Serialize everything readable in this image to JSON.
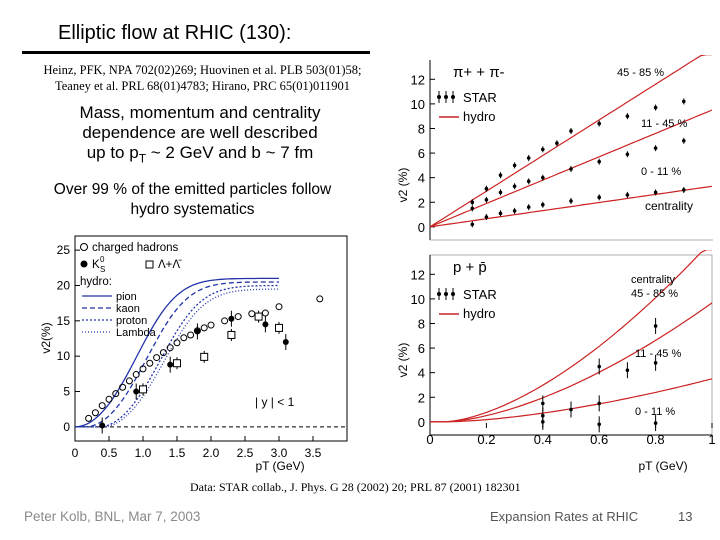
{
  "slide": {
    "title": "Elliptic flow at RHIC (130):",
    "references_line1": "Heinz, PFK, NPA 702(02)269; Huovinen et al. PLB 503(01)58;",
    "references_line2": "Teaney et al. PRL 68(01)4783; Hirano, PRC 65(01)011901",
    "description_line1": "Mass, momentum and centrality",
    "description_line2": "dependence are well described",
    "description_line3_prefix": "up to p",
    "description_line3_sub": "T",
    "description_line3_suffix": " ~ 2 GeV and b ~ 7 fm",
    "over_line1": "Over 99 % of the emitted particles follow",
    "over_line2": "hydro systematics",
    "data_source": "Data: STAR collab.,  J. Phys. G 28 (2002) 20; PRL 87 (2001) 182301",
    "footer_left": "Peter Kolb, BNL, Mar 7, 2003",
    "footer_center": "Expansion Rates at RHIC",
    "page_number": "13"
  },
  "colors": {
    "hydro_red": "#cc2222",
    "dashed_blue": "#2233aa",
    "grid_gray": "#999999"
  },
  "chart_data": [
    {
      "type": "scatter",
      "title": "",
      "xlabel": "pT (GeV)",
      "ylabel": "v2(%)",
      "xlim": [
        0,
        4
      ],
      "ylim": [
        -2,
        27
      ],
      "xticks": [
        "0",
        "0.5",
        "1.0",
        "1.5",
        "2.0",
        "2.5",
        "3.0",
        "3.5"
      ],
      "yticks": [
        "0",
        "5",
        "10",
        "15",
        "20",
        "25"
      ],
      "legend": [
        "charged hadrons",
        "K",
        "S",
        "0",
        "Λ+Λ̄",
        "hydro:",
        "pion",
        "kaon",
        "proton",
        "Lambda"
      ],
      "annotation": "| y | < 1",
      "series": [
        {
          "name": "charged hadrons",
          "points": [
            [
              0.2,
              1.2
            ],
            [
              0.3,
              2.0
            ],
            [
              0.4,
              3.0
            ],
            [
              0.5,
              3.9
            ],
            [
              0.6,
              4.7
            ],
            [
              0.7,
              5.6
            ],
            [
              0.8,
              6.5
            ],
            [
              0.9,
              7.4
            ],
            [
              1.0,
              8.2
            ],
            [
              1.1,
              9.0
            ],
            [
              1.2,
              9.8
            ],
            [
              1.3,
              10.5
            ],
            [
              1.4,
              11.2
            ],
            [
              1.5,
              11.9
            ],
            [
              1.6,
              12.6
            ],
            [
              1.7,
              13.0
            ],
            [
              1.8,
              13.6
            ],
            [
              1.9,
              14.0
            ],
            [
              2.0,
              14.4
            ],
            [
              2.2,
              15.0
            ],
            [
              2.4,
              15.6
            ],
            [
              2.6,
              16.0
            ],
            [
              2.8,
              16.1
            ],
            [
              3.0,
              17.0
            ],
            [
              3.6,
              18.1
            ]
          ]
        },
        {
          "name": "K",
          "points": [
            [
              0.4,
              0.2
            ],
            [
              0.9,
              5.0
            ],
            [
              1.4,
              8.8
            ],
            [
              1.8,
              13.5
            ],
            [
              2.3,
              15.3
            ],
            [
              2.8,
              14.5
            ],
            [
              3.1,
              12.0
            ]
          ]
        },
        {
          "name": "Λ+Λ̄",
          "points": [
            [
              1.0,
              5.3
            ],
            [
              1.5,
              9.0
            ],
            [
              1.9,
              9.9
            ],
            [
              2.3,
              13.0
            ],
            [
              2.7,
              15.6
            ],
            [
              3.0,
              14.0
            ]
          ]
        }
      ]
    },
    {
      "type": "scatter",
      "title": "π+ + π-",
      "xlabel": "",
      "ylabel": "v2 (%)",
      "xlim": [
        0,
        1
      ],
      "ylim": [
        -0.5,
        13
      ],
      "yticks": [
        "0",
        "2",
        "4",
        "6",
        "8",
        "10",
        "12"
      ],
      "legend": [
        "STAR",
        "hydro"
      ],
      "annotations": [
        "45 - 85 %",
        "11 - 45 %",
        "0 - 11 %",
        "centrality"
      ],
      "series": [
        {
          "name": "45 - 85 %",
          "points": [
            [
              0.15,
              2.0
            ],
            [
              0.2,
              3.1
            ],
            [
              0.25,
              4.2
            ],
            [
              0.3,
              5.0
            ],
            [
              0.35,
              5.6
            ],
            [
              0.4,
              6.3
            ],
            [
              0.45,
              6.8
            ],
            [
              0.5,
              7.8
            ],
            [
              0.6,
              8.4
            ],
            [
              0.7,
              9.0
            ],
            [
              0.8,
              9.7
            ],
            [
              0.9,
              10.2
            ]
          ]
        },
        {
          "name": "11 - 45 %",
          "points": [
            [
              0.15,
              1.5
            ],
            [
              0.2,
              2.2
            ],
            [
              0.25,
              2.8
            ],
            [
              0.3,
              3.3
            ],
            [
              0.35,
              3.7
            ],
            [
              0.4,
              4.0
            ],
            [
              0.5,
              4.7
            ],
            [
              0.6,
              5.3
            ],
            [
              0.7,
              5.9
            ],
            [
              0.8,
              6.4
            ],
            [
              0.9,
              7.0
            ]
          ]
        },
        {
          "name": "0 - 11 %",
          "points": [
            [
              0.15,
              0.2
            ],
            [
              0.2,
              0.8
            ],
            [
              0.25,
              1.1
            ],
            [
              0.3,
              1.3
            ],
            [
              0.35,
              1.6
            ],
            [
              0.4,
              1.8
            ],
            [
              0.5,
              2.1
            ],
            [
              0.6,
              2.4
            ],
            [
              0.7,
              2.6
            ],
            [
              0.8,
              2.8
            ],
            [
              0.9,
              3.0
            ]
          ]
        }
      ]
    },
    {
      "type": "scatter",
      "title": "p + p̄",
      "xlabel": "pT (GeV)",
      "ylabel": "v2 (%)",
      "xlim": [
        0,
        1
      ],
      "ylim": [
        -0.5,
        13
      ],
      "xticks": [
        "0",
        "0.2",
        "0.4",
        "0.6",
        "0.8",
        "1"
      ],
      "yticks": [
        "0",
        "2",
        "4",
        "6",
        "8",
        "10",
        "12"
      ],
      "legend": [
        "STAR",
        "hydro"
      ],
      "annotations": [
        "centrality",
        "45 - 85 %",
        "11 - 45 %",
        "0 - 11 %"
      ],
      "series": [
        {
          "name": "45 - 85 %",
          "points": [
            [
              0.4,
              1.5
            ],
            [
              0.6,
              4.5
            ],
            [
              0.8,
              7.8
            ]
          ]
        },
        {
          "name": "11 - 45 %",
          "points": [
            [
              0.4,
              0.5
            ],
            [
              0.5,
              1.0
            ],
            [
              0.6,
              1.5
            ],
            [
              0.7,
              4.2
            ],
            [
              0.8,
              4.8
            ]
          ]
        },
        {
          "name": "0 - 11 %",
          "points": [
            [
              0.4,
              0.0
            ],
            [
              0.6,
              -0.2
            ],
            [
              0.8,
              -0.1
            ]
          ]
        }
      ]
    }
  ]
}
